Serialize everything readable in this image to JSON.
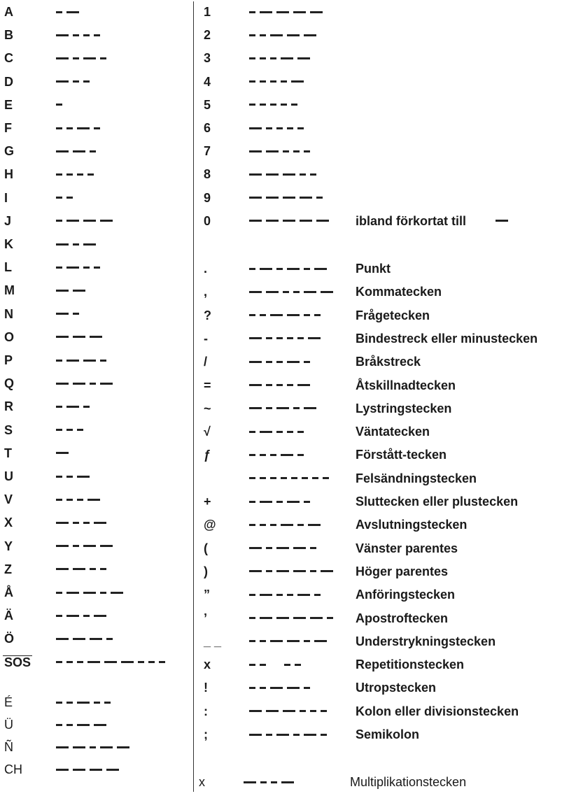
{
  "letters": [
    {
      "ch": "A",
      "code": ".-"
    },
    {
      "ch": "B",
      "code": "-..."
    },
    {
      "ch": "C",
      "code": "-.-."
    },
    {
      "ch": "D",
      "code": "-.."
    },
    {
      "ch": "E",
      "code": "."
    },
    {
      "ch": "F",
      "code": "..-."
    },
    {
      "ch": "G",
      "code": "--."
    },
    {
      "ch": "H",
      "code": "...."
    },
    {
      "ch": "I",
      "code": ".."
    },
    {
      "ch": "J",
      "code": ".---"
    },
    {
      "ch": "K",
      "code": "-.-"
    },
    {
      "ch": "L",
      "code": ".-.."
    },
    {
      "ch": "M",
      "code": "--"
    },
    {
      "ch": "N",
      "code": "-."
    },
    {
      "ch": "O",
      "code": "---"
    },
    {
      "ch": "P",
      "code": ".--."
    },
    {
      "ch": "Q",
      "code": "--.-"
    },
    {
      "ch": "R",
      "code": ".-."
    },
    {
      "ch": "S",
      "code": "..."
    },
    {
      "ch": "T",
      "code": "-"
    },
    {
      "ch": "U",
      "code": "..-"
    },
    {
      "ch": "V",
      "code": "...-"
    },
    {
      "ch": "X",
      "code": "-..-"
    },
    {
      "ch": "Y",
      "code": "-.--"
    },
    {
      "ch": "Z",
      "code": "--.."
    },
    {
      "ch": "Å",
      "code": ".--.-"
    },
    {
      "ch": "Ä",
      "code": ".-.-"
    },
    {
      "ch": "Ö",
      "code": "---."
    },
    {
      "ch": "SOS",
      "code": "...---..."
    }
  ],
  "extra_letters": [
    {
      "ch": "É",
      "code": "..-.."
    },
    {
      "ch": "Ü",
      "code": "..--"
    },
    {
      "ch": "Ñ",
      "code": "--.--"
    },
    {
      "ch": "CH",
      "code": "----"
    }
  ],
  "digits": [
    {
      "ch": "1",
      "code": ".----"
    },
    {
      "ch": "2",
      "code": "..---"
    },
    {
      "ch": "3",
      "code": "...--"
    },
    {
      "ch": "4",
      "code": "....-"
    },
    {
      "ch": "5",
      "code": "....."
    },
    {
      "ch": "6",
      "code": "-...."
    },
    {
      "ch": "7",
      "code": "--..."
    },
    {
      "ch": "8",
      "code": "---.."
    },
    {
      "ch": "9",
      "code": "----."
    },
    {
      "ch": "0",
      "code": "-----",
      "label": "ibland förkortat till",
      "abbr": "-"
    }
  ],
  "symbols": [
    {
      "ch": ".",
      "code": ".-.-.-",
      "label": "Punkt"
    },
    {
      "ch": ",",
      "code": "--..--",
      "label": "Kommatecken"
    },
    {
      "ch": "?",
      "code": "..--..",
      "label": "Frågetecken"
    },
    {
      "ch": "-",
      "code": "-....-",
      "label": "Bindestreck eller minustecken"
    },
    {
      "ch": "/",
      "code": "-..-.",
      "label": "Bråkstreck"
    },
    {
      "ch": "=",
      "code": "-...-",
      "label": "Åtskillnadtecken"
    },
    {
      "ch": "~",
      "code": "-.-.-",
      "label": "Lystringstecken"
    },
    {
      "ch": "√",
      "code": ".-...",
      "label": "Väntatecken"
    },
    {
      "ch": "ƒ",
      "code": "...-.",
      "label": "Förstått-tecken"
    },
    {
      "ch": "",
      "code": "........",
      "label": "Felsändningstecken"
    },
    {
      "ch": "+",
      "code": ".-.-.",
      "label": "Sluttecken eller plustecken"
    },
    {
      "ch": "@",
      "code": "...-.-",
      "label": "Avslutningstecken"
    },
    {
      "ch": "(",
      "code": "-.--.",
      "label": "Vänster parentes"
    },
    {
      "ch": ")",
      "code": "-.--.-",
      "label": "Höger parentes"
    },
    {
      "ch": "”",
      "code": ".-..-.",
      "label": "Anföringstecken"
    },
    {
      "ch": "’",
      "code": ".----.",
      "label": "Apostroftecken"
    },
    {
      "ch": "_ _",
      "code": "..--.-",
      "label": "Understrykningstecken"
    },
    {
      "ch": "x",
      "code": ".. ..",
      "label": "Repetitionstecken"
    },
    {
      "ch": "!",
      "code": "..--.",
      "label": "Utropstecken"
    },
    {
      "ch": ":",
      "code": "---...",
      "label": "Kolon eller divisionstecken"
    },
    {
      "ch": ";",
      "code": "-.-.-.",
      "label": "Semikolon"
    }
  ],
  "footer_symbol": {
    "ch": "x",
    "code": "-..-",
    "label": "Multiplikationstecken"
  }
}
